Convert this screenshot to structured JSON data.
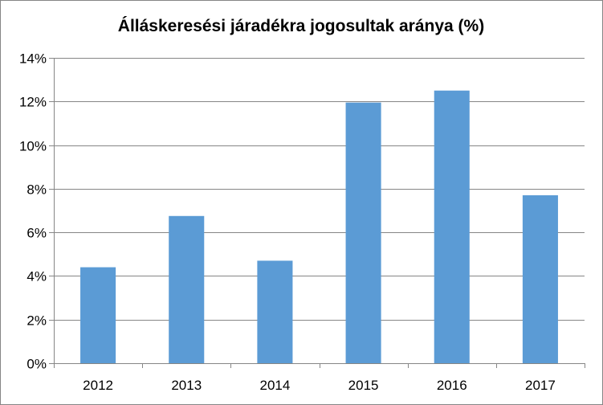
{
  "chart_data": {
    "type": "bar",
    "title": "Álláskeresési járadékra jogosultak aránya (%)",
    "xlabel": "",
    "ylabel": "",
    "categories": [
      "2012",
      "2013",
      "2014",
      "2015",
      "2016",
      "2017"
    ],
    "values": [
      4.4,
      6.75,
      4.7,
      11.95,
      12.5,
      7.7
    ],
    "ylim": [
      0,
      14
    ],
    "y_ticks": [
      0,
      2,
      4,
      6,
      8,
      10,
      12,
      14
    ],
    "y_tick_labels": [
      "0%",
      "2%",
      "4%",
      "6%",
      "8%",
      "10%",
      "12%",
      "14%"
    ],
    "y_unit": "%",
    "grid": true,
    "legend": "none",
    "colors": {
      "bar": "#5B9BD5",
      "grid": "#868686",
      "axis": "#868686",
      "text": "#000000"
    }
  }
}
